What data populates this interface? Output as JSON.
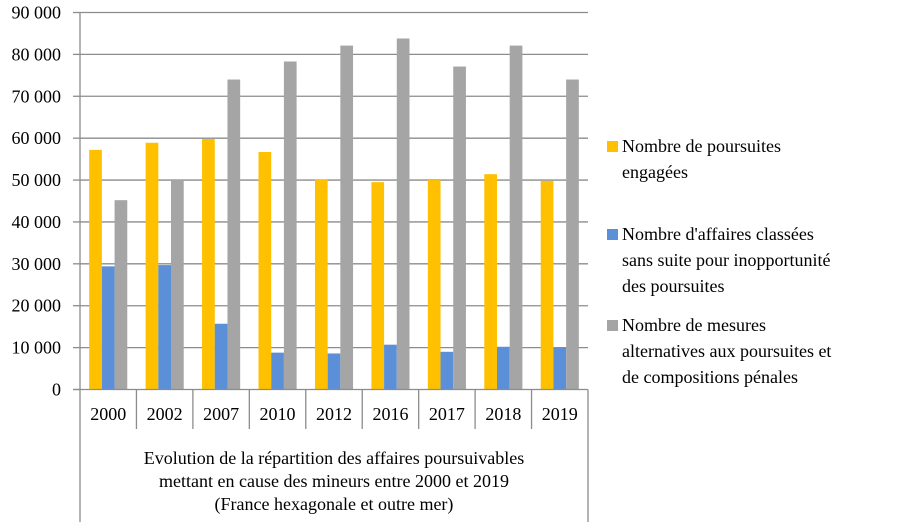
{
  "chart_data": {
    "type": "bar",
    "title": "",
    "xlabel": "Evolution de la répartition des affaires poursuivables mettant en cause des mineurs entre 2000 et 2019 (France hexagonale et outre mer)",
    "xlabel_lines": [
      "Evolution de la répartition des affaires poursuivables",
      "mettant en cause des mineurs entre 2000 et 2019",
      "(France hexagonale et outre mer)"
    ],
    "ylabel": "",
    "ylim": [
      0,
      90000
    ],
    "yticks": [
      0,
      10000,
      20000,
      30000,
      40000,
      50000,
      60000,
      70000,
      80000,
      90000
    ],
    "ytick_labels": [
      "0",
      "10 000",
      "20 000",
      "30 000",
      "40 000",
      "50 000",
      "60 000",
      "70 000",
      "80 000",
      "90 000"
    ],
    "grid": true,
    "legend_position": "right",
    "categories": [
      "2000",
      "2002",
      "2007",
      "2010",
      "2012",
      "2016",
      "2017",
      "2018",
      "2019"
    ],
    "series": [
      {
        "name": "Nombre de poursuites engagées",
        "legend_lines": [
          "Nombre de poursuites",
          "engagées"
        ],
        "color": "#FFC000",
        "values": [
          57200,
          58900,
          59800,
          56700,
          50200,
          49500,
          50000,
          51400,
          49800
        ]
      },
      {
        "name": "Nombre d'affaires classées sans suite pour inopportunité des poursuites",
        "legend_lines": [
          "Nombre d'affaires classées",
          "sans suite pour inopportunité",
          "des poursuites"
        ],
        "color": "#5B8FD7",
        "values": [
          29400,
          29700,
          15700,
          8800,
          8600,
          10700,
          9000,
          10200,
          10000
        ]
      },
      {
        "name": "Nombre de mesures alternatives aux poursuites et de compositions pénales",
        "legend_lines": [
          "Nombre de mesures",
          "alternatives aux poursuites et",
          "de compositions pénales"
        ],
        "color": "#A5A5A5",
        "values": [
          45200,
          50000,
          74000,
          78300,
          82100,
          83800,
          77100,
          82100,
          74000
        ]
      }
    ]
  }
}
